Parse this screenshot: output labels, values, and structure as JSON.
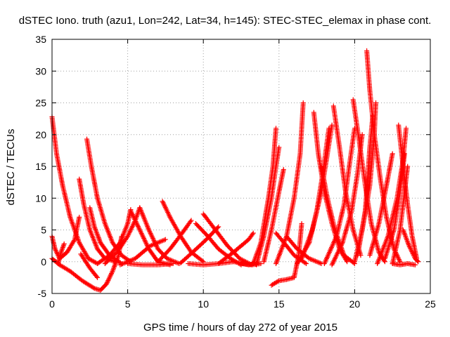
{
  "chart_data": {
    "type": "scatter",
    "title": "dSTEC Iono. truth (azu1, Lon=242, Lat=34, h=145): STEC-STEC_elemax in phase cont.",
    "xlabel": "GPS time / hours of day 272 of year 2015",
    "ylabel": "dSTEC  / TECUs",
    "xlim": [
      0,
      25
    ],
    "ylim": [
      -5,
      35
    ],
    "xticks": [
      0,
      5,
      10,
      15,
      20,
      25
    ],
    "yticks": [
      -5,
      0,
      5,
      10,
      15,
      20,
      25,
      30,
      35
    ],
    "grid": true,
    "marker": "+",
    "color": "#ff0000",
    "series": [
      {
        "points": [
          [
            0,
            22.8
          ],
          [
            0.3,
            17
          ],
          [
            0.7,
            12
          ],
          [
            1.2,
            7
          ],
          [
            1.8,
            3
          ],
          [
            2.4,
            0.5
          ],
          [
            3.0,
            -0.3
          ]
        ]
      },
      {
        "points": [
          [
            0,
            4
          ],
          [
            0.2,
            2
          ],
          [
            0.5,
            0.5
          ],
          [
            1.0,
            1.5
          ],
          [
            1.5,
            3.5
          ],
          [
            1.8,
            7
          ]
        ]
      },
      {
        "points": [
          [
            0,
            0.5
          ],
          [
            0.5,
            -0.5
          ],
          [
            1.2,
            -1.5
          ],
          [
            2.0,
            -3
          ],
          [
            2.8,
            -4.2
          ],
          [
            3.2,
            -4.5
          ],
          [
            3.6,
            -3.5
          ],
          [
            4.0,
            -1.5
          ],
          [
            4.4,
            1
          ],
          [
            4.6,
            4
          ]
        ]
      },
      {
        "points": [
          [
            0.4,
            -0.3
          ],
          [
            0.6,
            1.5
          ],
          [
            0.8,
            2.8
          ]
        ]
      },
      {
        "points": [
          [
            1.8,
            13
          ],
          [
            2.1,
            9
          ],
          [
            2.5,
            5
          ],
          [
            3.0,
            2
          ],
          [
            3.5,
            0.5
          ],
          [
            4.2,
            0
          ]
        ]
      },
      {
        "points": [
          [
            2.3,
            19.3
          ],
          [
            2.6,
            15
          ],
          [
            3.0,
            10
          ],
          [
            3.5,
            6
          ],
          [
            4.0,
            3
          ],
          [
            4.6,
            1
          ],
          [
            5.2,
            0
          ]
        ]
      },
      {
        "points": [
          [
            2.5,
            8.5
          ],
          [
            2.8,
            5.5
          ],
          [
            3.2,
            3
          ],
          [
            3.8,
            1
          ],
          [
            4.6,
            -0.3
          ]
        ]
      },
      {
        "points": [
          [
            1.9,
            1.2
          ],
          [
            2.5,
            -1
          ],
          [
            3.0,
            -2.5
          ]
        ]
      },
      {
        "points": [
          [
            3.0,
            -0.3
          ],
          [
            3.8,
            1
          ],
          [
            4.5,
            3
          ],
          [
            5.0,
            6
          ],
          [
            5.2,
            8.2
          ]
        ]
      },
      {
        "points": [
          [
            3.5,
            -0.3
          ],
          [
            4.3,
            1.5
          ],
          [
            5.0,
            4
          ],
          [
            5.5,
            6.5
          ],
          [
            5.8,
            8.5
          ]
        ]
      },
      {
        "points": [
          [
            5.2,
            8
          ],
          [
            5.8,
            5
          ],
          [
            6.4,
            2
          ],
          [
            7.0,
            0
          ],
          [
            7.8,
            -0.5
          ]
        ]
      },
      {
        "points": [
          [
            5.8,
            8.5
          ],
          [
            6.4,
            5
          ],
          [
            7.0,
            2
          ],
          [
            7.6,
            0.5
          ],
          [
            8.4,
            -0.3
          ]
        ]
      },
      {
        "points": [
          [
            4.5,
            -0.5
          ],
          [
            5.5,
            0.5
          ],
          [
            6.5,
            2.5
          ],
          [
            7.5,
            3.5
          ]
        ]
      },
      {
        "points": [
          [
            5.0,
            -0.3
          ],
          [
            6.0,
            -0.5
          ],
          [
            7.0,
            -0.5
          ],
          [
            8.0,
            -0.3
          ]
        ]
      },
      {
        "points": [
          [
            7.3,
            9.5
          ],
          [
            7.8,
            7
          ],
          [
            8.5,
            4
          ],
          [
            9.2,
            1.5
          ],
          [
            10.0,
            0
          ]
        ]
      },
      {
        "points": [
          [
            7.0,
            0
          ],
          [
            7.8,
            2
          ],
          [
            8.6,
            4.5
          ],
          [
            9.2,
            6.5
          ]
        ]
      },
      {
        "points": [
          [
            8.5,
            -0.2
          ],
          [
            9.3,
            1.5
          ],
          [
            10.2,
            3.5
          ],
          [
            11.0,
            5.5
          ]
        ]
      },
      {
        "points": [
          [
            9.5,
            6
          ],
          [
            10.3,
            4
          ],
          [
            11.0,
            2
          ],
          [
            11.8,
            0.5
          ],
          [
            12.5,
            -0.5
          ]
        ]
      },
      {
        "points": [
          [
            10.0,
            7.5
          ],
          [
            10.8,
            5
          ],
          [
            11.6,
            2.5
          ],
          [
            12.4,
            0.5
          ],
          [
            13.2,
            -0.5
          ]
        ]
      },
      {
        "points": [
          [
            11.0,
            -0.3
          ],
          [
            12.0,
            1.5
          ],
          [
            13.0,
            3.5
          ],
          [
            13.3,
            4.5
          ]
        ]
      },
      {
        "points": [
          [
            12.0,
            0
          ],
          [
            13.0,
            -0.5
          ],
          [
            13.5,
            -0.2
          ]
        ]
      },
      {
        "points": [
          [
            9.0,
            -0.3
          ],
          [
            10.0,
            -0.5
          ],
          [
            11.0,
            -0.3
          ],
          [
            12.0,
            0
          ]
        ]
      },
      {
        "points": [
          [
            13.3,
            -0.3
          ],
          [
            13.8,
            3
          ],
          [
            14.3,
            10
          ],
          [
            14.6,
            15
          ],
          [
            14.8,
            21
          ]
        ]
      },
      {
        "points": [
          [
            13.5,
            -0.5
          ],
          [
            14.0,
            4
          ],
          [
            14.5,
            10
          ],
          [
            14.8,
            15
          ],
          [
            15.0,
            18
          ]
        ]
      },
      {
        "points": [
          [
            14.0,
            0
          ],
          [
            14.5,
            5
          ],
          [
            15.0,
            11
          ],
          [
            15.3,
            14.5
          ]
        ]
      },
      {
        "points": [
          [
            14.5,
            -3.7
          ],
          [
            15.0,
            -3
          ],
          [
            15.5,
            -2.8
          ],
          [
            16.0,
            -2.5
          ],
          [
            16.3,
            1
          ],
          [
            16.5,
            6
          ]
        ]
      },
      {
        "points": [
          [
            14.8,
            -0.3
          ],
          [
            15.5,
            4
          ],
          [
            16.0,
            10
          ],
          [
            16.4,
            17
          ],
          [
            16.6,
            25
          ]
        ]
      },
      {
        "points": [
          [
            14.8,
            4.5
          ],
          [
            15.5,
            2.5
          ],
          [
            16.0,
            1
          ],
          [
            16.8,
            -0.3
          ]
        ]
      },
      {
        "points": [
          [
            15.5,
            4
          ],
          [
            16.2,
            2
          ],
          [
            17.0,
            0.5
          ],
          [
            17.8,
            -0.3
          ]
        ]
      },
      {
        "points": [
          [
            16.2,
            -0.3
          ],
          [
            17.0,
            3
          ],
          [
            17.5,
            8
          ],
          [
            17.9,
            14
          ],
          [
            18.3,
            21
          ]
        ]
      },
      {
        "points": [
          [
            16.5,
            0.5
          ],
          [
            17.2,
            5
          ],
          [
            17.8,
            11
          ],
          [
            18.2,
            17
          ],
          [
            18.5,
            21.5
          ]
        ]
      },
      {
        "points": [
          [
            17.3,
            23.5
          ],
          [
            17.6,
            17
          ],
          [
            18.0,
            11
          ],
          [
            18.5,
            6
          ],
          [
            19.0,
            2
          ],
          [
            19.5,
            0
          ]
        ]
      },
      {
        "points": [
          [
            17.8,
            15
          ],
          [
            18.2,
            10
          ],
          [
            18.7,
            5
          ],
          [
            19.3,
            1
          ],
          [
            20.0,
            -0.3
          ]
        ]
      },
      {
        "points": [
          [
            18.0,
            -0.3
          ],
          [
            18.8,
            4
          ],
          [
            19.3,
            9
          ],
          [
            19.7,
            16
          ],
          [
            20.0,
            21
          ]
        ]
      },
      {
        "points": [
          [
            18.6,
            24.5
          ],
          [
            19.0,
            18
          ],
          [
            19.4,
            11
          ],
          [
            19.9,
            5
          ],
          [
            20.4,
            1
          ]
        ]
      },
      {
        "points": [
          [
            18.5,
            -0.5
          ],
          [
            19.2,
            3
          ],
          [
            19.8,
            8
          ],
          [
            20.2,
            14
          ],
          [
            20.5,
            20
          ]
        ]
      },
      {
        "points": [
          [
            19.9,
            25.5
          ],
          [
            20.3,
            19
          ],
          [
            20.7,
            12
          ],
          [
            21.1,
            6
          ],
          [
            21.6,
            1.5
          ],
          [
            22.0,
            0
          ]
        ]
      },
      {
        "points": [
          [
            20.0,
            0
          ],
          [
            20.5,
            5
          ],
          [
            21.0,
            12
          ],
          [
            21.3,
            20
          ],
          [
            21.4,
            25
          ]
        ]
      },
      {
        "points": [
          [
            20.2,
            1
          ],
          [
            20.7,
            8
          ],
          [
            21.0,
            18
          ],
          [
            21.2,
            23
          ]
        ]
      },
      {
        "points": [
          [
            20.8,
            33.2
          ],
          [
            21.0,
            27
          ],
          [
            21.3,
            20
          ],
          [
            21.7,
            13
          ],
          [
            22.1,
            7
          ],
          [
            22.6,
            2
          ],
          [
            23.0,
            0
          ]
        ]
      },
      {
        "points": [
          [
            21.0,
            1
          ],
          [
            21.6,
            6
          ],
          [
            22.1,
            12
          ],
          [
            22.5,
            17
          ]
        ]
      },
      {
        "points": [
          [
            21.5,
            -0.3
          ],
          [
            22.2,
            4
          ],
          [
            22.8,
            10
          ],
          [
            23.2,
            16
          ],
          [
            23.4,
            21
          ]
        ]
      },
      {
        "points": [
          [
            22.0,
            0.5
          ],
          [
            22.6,
            5
          ],
          [
            23.0,
            11
          ],
          [
            23.3,
            17
          ]
        ]
      },
      {
        "points": [
          [
            22.5,
            -0.3
          ],
          [
            23.0,
            5
          ],
          [
            23.3,
            11
          ],
          [
            23.5,
            15
          ]
        ]
      },
      {
        "points": [
          [
            22.9,
            21.5
          ],
          [
            23.2,
            15
          ],
          [
            23.5,
            9
          ],
          [
            23.8,
            4
          ],
          [
            24.1,
            0.5
          ]
        ]
      },
      {
        "points": [
          [
            23.2,
            5
          ],
          [
            23.6,
            2.5
          ],
          [
            24.0,
            0.5
          ],
          [
            24.2,
            0
          ]
        ]
      },
      {
        "points": [
          [
            22.5,
            -0.3
          ],
          [
            23.0,
            -0.5
          ],
          [
            23.5,
            -0.3
          ],
          [
            24.0,
            -0.5
          ]
        ]
      },
      {
        "points": [
          [
            13.8,
            -0.3
          ],
          [
            13.2,
            -0.5
          ],
          [
            12.5,
            -0.3
          ]
        ]
      }
    ]
  }
}
